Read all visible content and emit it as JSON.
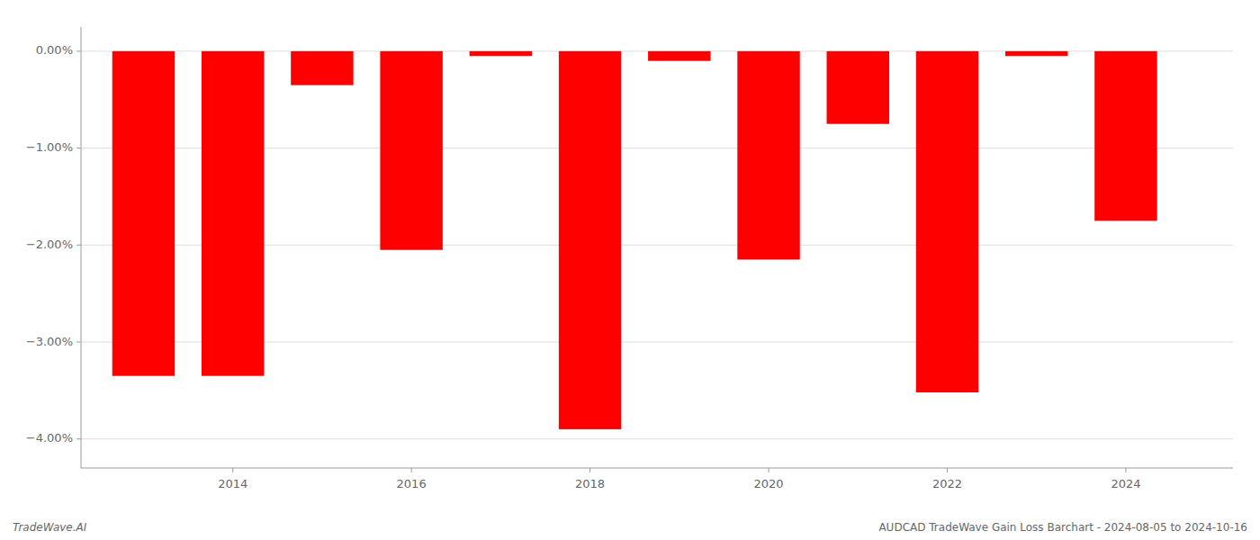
{
  "chart_data": {
    "type": "bar",
    "title": "AUDCAD TradeWave Gain Loss Barchart - 2024-08-05 to 2024-10-16",
    "annotations": [
      "TradeWave.AI"
    ],
    "x": [
      2013,
      2014,
      2015,
      2016,
      2017,
      2018,
      2019,
      2020,
      2021,
      2022,
      2023,
      2024
    ],
    "values": [
      -3.35,
      -3.35,
      -0.35,
      -2.05,
      -0.05,
      -3.9,
      -0.1,
      -2.15,
      -0.75,
      -3.52,
      -0.05,
      -1.75
    ],
    "color": "#ff0000",
    "xlim": [
      2012.3,
      2025.2
    ],
    "xticks": [
      2014,
      2016,
      2018,
      2020,
      2022,
      2024
    ],
    "ylim": [
      -4.3,
      0.25
    ],
    "yticks": [
      {
        "value": 0.0,
        "label": "0.00%"
      },
      {
        "value": -1.0,
        "label": "−1.00%"
      },
      {
        "value": -2.0,
        "label": "−2.00%"
      },
      {
        "value": -3.0,
        "label": "−3.00%"
      },
      {
        "value": -4.0,
        "label": "−4.00%"
      }
    ],
    "grid": true
  }
}
